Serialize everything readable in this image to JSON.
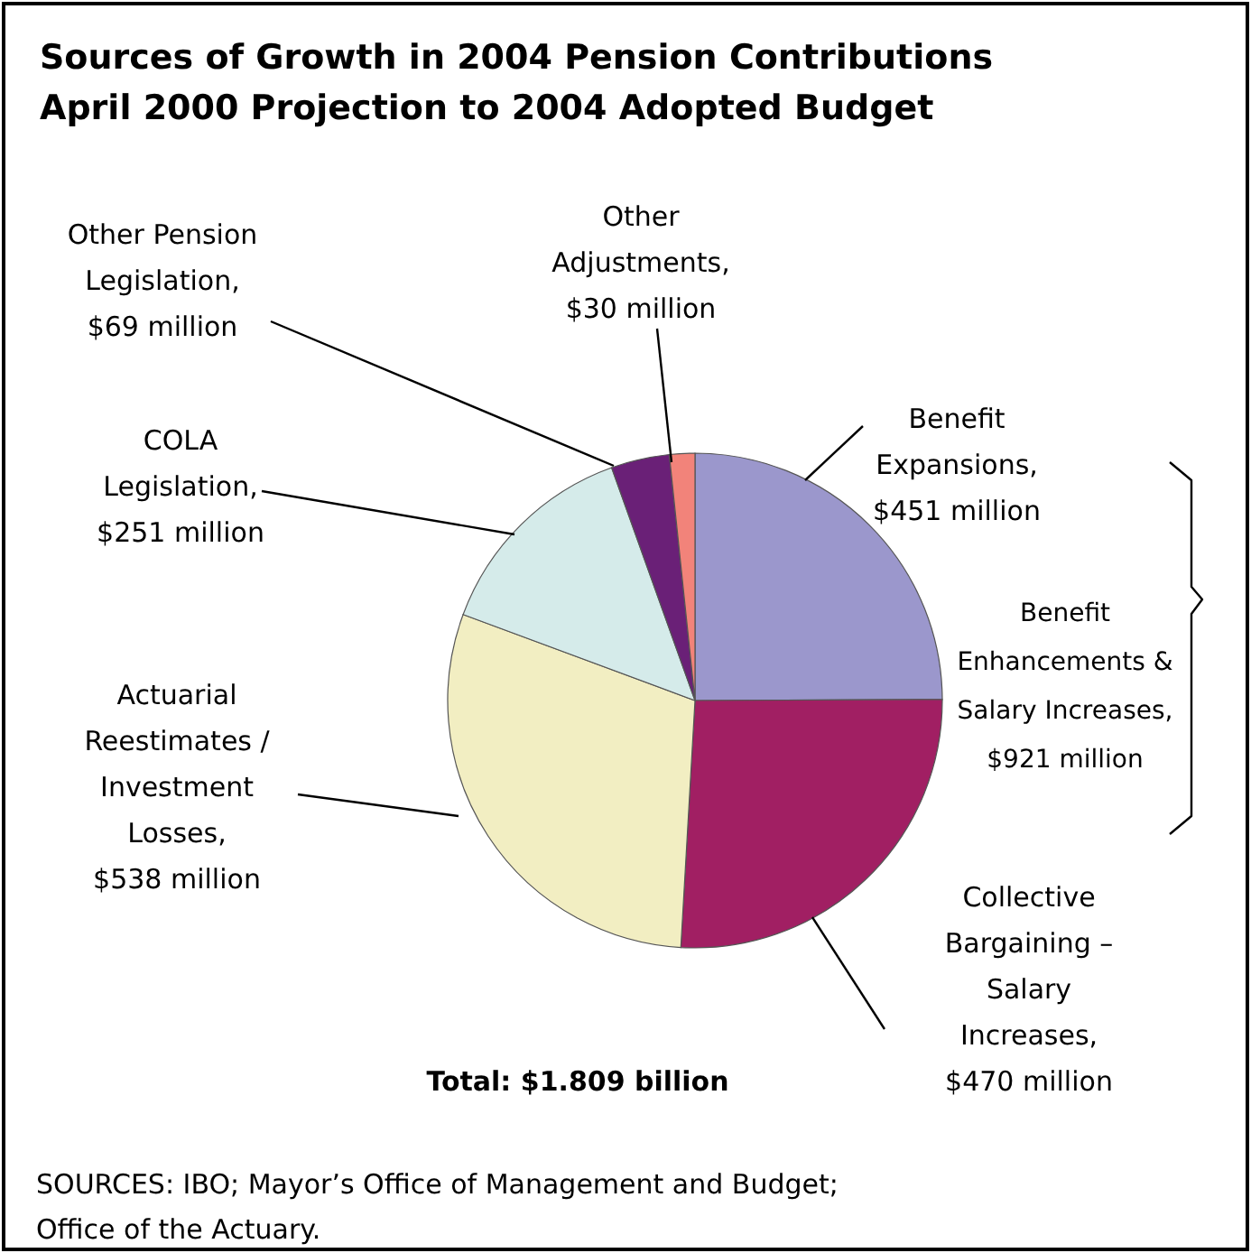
{
  "chart_data": {
    "type": "pie",
    "title": "Sources of Growth in 2004 Pension Contributions",
    "subtitle": "April 2000 Projection to 2004 Adopted Budget",
    "categories": [
      "Benefit Expansions, $451 million",
      "Collective Bargaining – Salary Increases, $470 million",
      "Actuarial Reestimates / Investment Losses, $538 million",
      "COLA Legislation, $251 million",
      "Other Pension Legislation, $69 million",
      "Other Adjustments, $30 million"
    ],
    "values": [
      451,
      470,
      538,
      251,
      69,
      30
    ],
    "colors": [
      "#9b97cc",
      "#a11f63",
      "#f2eec2",
      "#d5ebea",
      "#6a2077",
      "#f2837a"
    ],
    "annotations": [
      "Benefit Enhancements & Salary Increases, $921 million",
      "Total: $1.809 billion",
      "SOURCES: IBO; Mayor’s Office of Management and Budget; Office of the Actuary."
    ]
  }
}
